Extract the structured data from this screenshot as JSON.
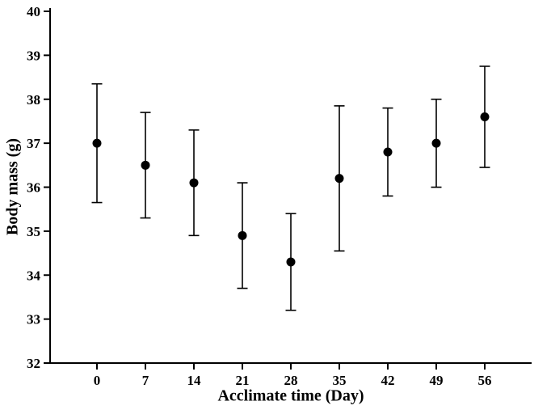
{
  "chart_data": {
    "type": "scatter",
    "title": "",
    "xlabel": "Acclimate time (Day)",
    "ylabel": "Body mass (g)",
    "x": [
      0,
      7,
      14,
      21,
      28,
      35,
      42,
      49,
      56
    ],
    "series": [
      {
        "name": "Body mass",
        "values": [
          37.0,
          36.5,
          36.1,
          34.9,
          34.3,
          36.2,
          36.8,
          37.0,
          37.6
        ],
        "error": [
          1.35,
          1.2,
          1.2,
          1.2,
          1.1,
          1.65,
          1.0,
          1.0,
          1.15
        ]
      }
    ],
    "ylim": [
      32,
      40
    ],
    "ytick_step": 1,
    "grid": "off",
    "legend": "none",
    "marker": "filled-circle",
    "marker_color": "#000000",
    "axis_color": "#000000",
    "background_color": "#ffffff"
  }
}
